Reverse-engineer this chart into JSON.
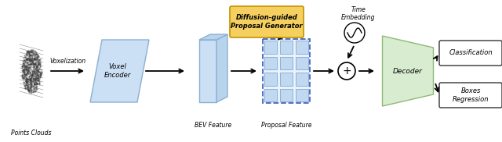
{
  "fig_width": 6.4,
  "fig_height": 1.82,
  "dpi": 100,
  "bg": "#ffffff",
  "blue_light": "#cce0f5",
  "blue_mid": "#a8c8e8",
  "blue_dark": "#8ab0d0",
  "blue_side": "#b8d4ec",
  "green_light": "#d8ecd0",
  "green_edge": "#90b878",
  "yellow_fill": "#f5d060",
  "yellow_edge": "#c8980a",
  "grid_fill": "#c0d8f0",
  "grid_edge": "#7799cc",
  "dashed_edge": "#4466bb",
  "voxel_encoder_label": "Voxel\nEncoder",
  "bev_label": "BEV Feature",
  "proposal_label": "Proposal Feature",
  "diffusion_label": "Diffusion-guided\nProposal Generator",
  "time_label": "Time\nEmbedding",
  "decoder_label": "Decoder",
  "class_label": "Classification",
  "boxes_label": "Boxes\nRegression",
  "voxelization_label": "Voxelization",
  "points_label": "Points Clouds"
}
